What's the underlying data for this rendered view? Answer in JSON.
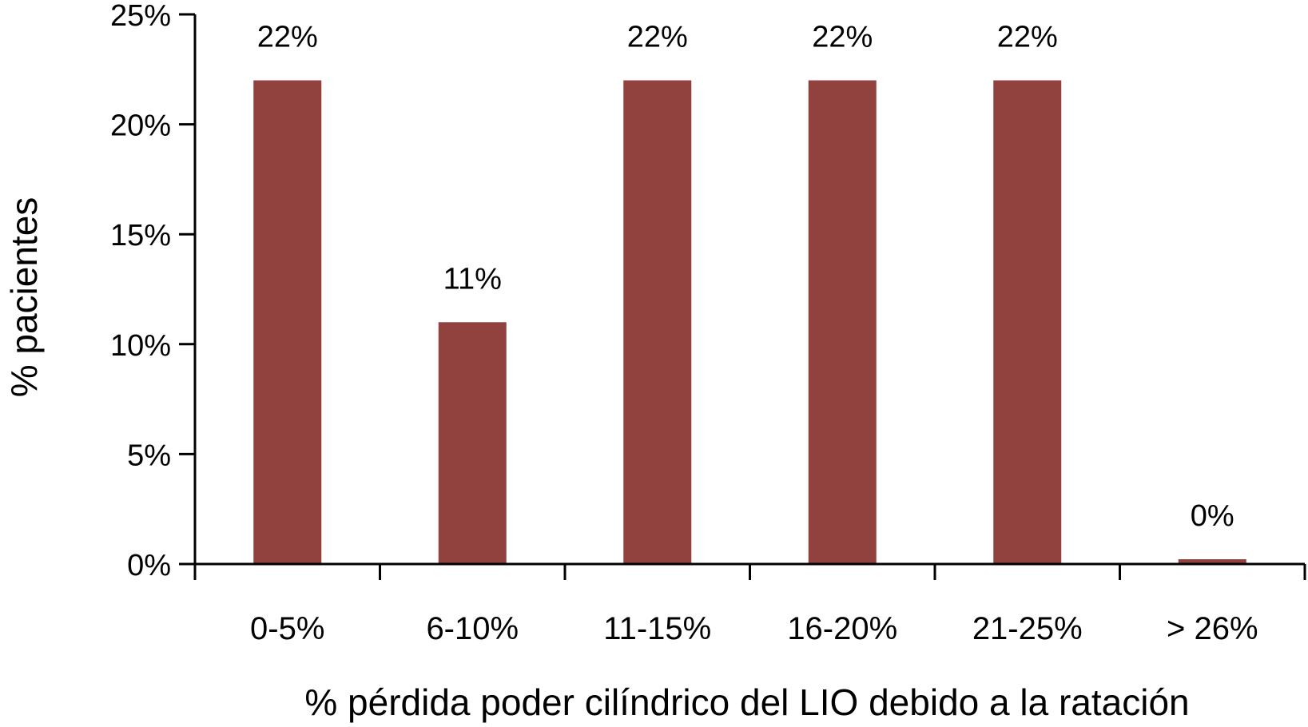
{
  "chart_data": {
    "type": "bar",
    "categories": [
      "0-5%",
      "6-10%",
      "11-15%",
      "16-20%",
      "21-25%",
      "> 26%"
    ],
    "values": [
      22,
      11,
      22,
      22,
      22,
      0
    ],
    "data_labels": [
      "22%",
      "11%",
      "22%",
      "22%",
      "22%",
      "0%"
    ],
    "ylim": [
      0,
      25
    ],
    "yticks": [
      0,
      5,
      10,
      15,
      20,
      25
    ],
    "ytick_labels": [
      "0%",
      "5%",
      "10%",
      "15%",
      "20%",
      "25%"
    ],
    "xlabel": "% pérdida poder cilíndrico del LIO debido a la ratación",
    "ylabel": "% pacientes",
    "grid": false,
    "legend": "none",
    "bar_color": "#91423f"
  }
}
